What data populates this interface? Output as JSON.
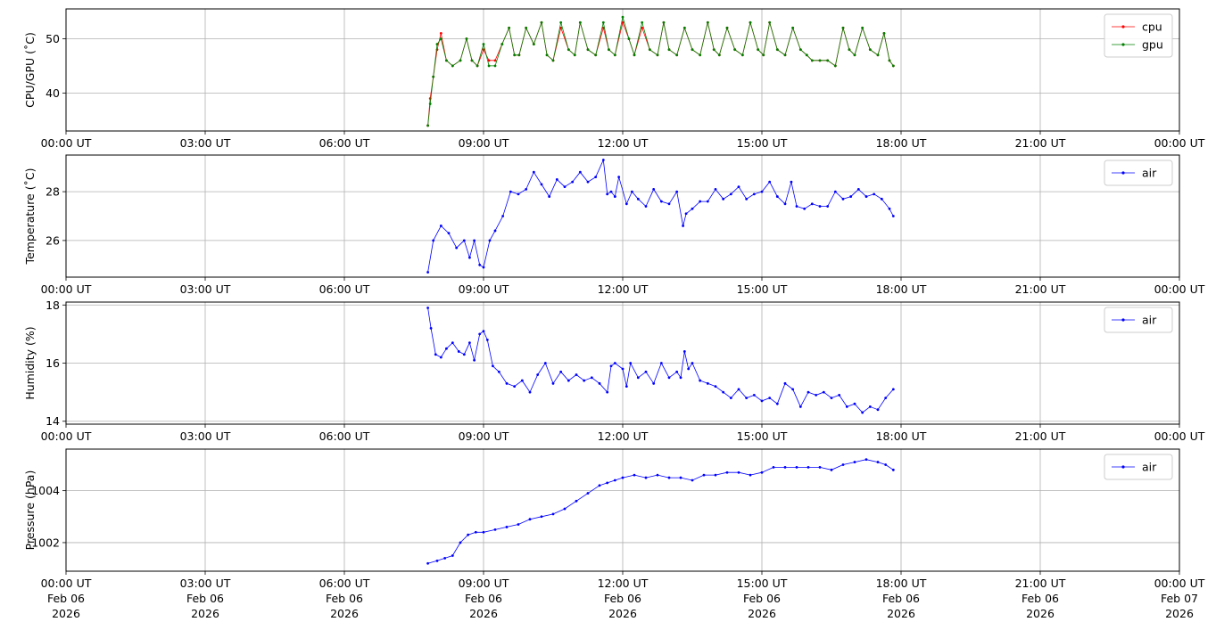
{
  "x_tick_labels": [
    "00:00 UT",
    "03:00 UT",
    "06:00 UT",
    "09:00 UT",
    "12:00 UT",
    "15:00 UT",
    "18:00 UT",
    "21:00 UT",
    "00:00 UT"
  ],
  "x_tick_dates": [
    "Feb 06",
    "Feb 06",
    "Feb 06",
    "Feb 06",
    "Feb 06",
    "Feb 06",
    "Feb 06",
    "Feb 06",
    "Feb 07"
  ],
  "x_tick_years": [
    "2026",
    "2026",
    "2026",
    "2026",
    "2026",
    "2026",
    "2026",
    "2026",
    "2026"
  ],
  "chart_data": [
    {
      "type": "line",
      "ylabel": "CPU/GPU (˚C)",
      "xlim": [
        "2026-02-06 00:00",
        "2026-02-07 00:00"
      ],
      "ylim": [
        33,
        55.5
      ],
      "yticks": [
        40,
        50
      ],
      "grid": true,
      "legend": "top-right",
      "series": [
        {
          "name": "cpu",
          "color": "#ff0000",
          "x": [
            "07:48",
            "07:51",
            "07:55",
            "08:00",
            "08:05",
            "08:12",
            "08:20",
            "08:30",
            "08:38",
            "08:45",
            "08:52",
            "09:00",
            "09:07",
            "09:15",
            "09:24",
            "09:33",
            "09:40",
            "09:46",
            "09:55",
            "10:05",
            "10:15",
            "10:22",
            "10:30",
            "10:40",
            "10:50",
            "10:58",
            "11:05",
            "11:15",
            "11:25",
            "11:35",
            "11:42",
            "11:50",
            "12:00",
            "12:08",
            "12:15",
            "12:25",
            "12:35",
            "12:45",
            "12:53",
            "13:00",
            "13:10",
            "13:20",
            "13:30",
            "13:40",
            "13:50",
            "13:58",
            "14:05",
            "14:15",
            "14:25",
            "14:35",
            "14:45",
            "14:55",
            "15:02",
            "15:10",
            "15:20",
            "15:30",
            "15:40",
            "15:50",
            "15:58",
            "16:05",
            "16:15",
            "16:25",
            "16:35",
            "16:45",
            "16:53",
            "17:00",
            "17:10",
            "17:20",
            "17:30",
            "17:38",
            "17:45",
            "17:50"
          ],
          "y": [
            34,
            39,
            43,
            48,
            51,
            46,
            45,
            46,
            50,
            46,
            45,
            48,
            46,
            46,
            49,
            52,
            47,
            47,
            52,
            49,
            53,
            47,
            46,
            52,
            48,
            47,
            53,
            48,
            47,
            52,
            48,
            47,
            53,
            50,
            47,
            52,
            48,
            47,
            53,
            48,
            47,
            52,
            48,
            47,
            53,
            48,
            47,
            52,
            48,
            47,
            53,
            48,
            47,
            53,
            48,
            47,
            52,
            48,
            47,
            46,
            46,
            46,
            45,
            52,
            48,
            47,
            52,
            48,
            47,
            51,
            46,
            45
          ]
        },
        {
          "name": "gpu",
          "color": "#008000",
          "x": [
            "07:48",
            "07:51",
            "07:55",
            "08:00",
            "08:05",
            "08:12",
            "08:20",
            "08:30",
            "08:38",
            "08:45",
            "08:52",
            "09:00",
            "09:07",
            "09:15",
            "09:24",
            "09:33",
            "09:40",
            "09:46",
            "09:55",
            "10:05",
            "10:15",
            "10:22",
            "10:30",
            "10:40",
            "10:50",
            "10:58",
            "11:05",
            "11:15",
            "11:25",
            "11:35",
            "11:42",
            "11:50",
            "12:00",
            "12:08",
            "12:15",
            "12:25",
            "12:35",
            "12:45",
            "12:53",
            "13:00",
            "13:10",
            "13:20",
            "13:30",
            "13:40",
            "13:50",
            "13:58",
            "14:05",
            "14:15",
            "14:25",
            "14:35",
            "14:45",
            "14:55",
            "15:02",
            "15:10",
            "15:20",
            "15:30",
            "15:40",
            "15:50",
            "15:58",
            "16:05",
            "16:15",
            "16:25",
            "16:35",
            "16:45",
            "16:53",
            "17:00",
            "17:10",
            "17:20",
            "17:30",
            "17:38",
            "17:45",
            "17:50"
          ],
          "y": [
            34,
            38,
            43,
            49,
            50,
            46,
            45,
            46,
            50,
            46,
            45,
            49,
            45,
            45,
            49,
            52,
            47,
            47,
            52,
            49,
            53,
            47,
            46,
            53,
            48,
            47,
            53,
            48,
            47,
            53,
            48,
            47,
            54,
            50,
            47,
            53,
            48,
            47,
            53,
            48,
            47,
            52,
            48,
            47,
            53,
            48,
            47,
            52,
            48,
            47,
            53,
            48,
            47,
            53,
            48,
            47,
            52,
            48,
            47,
            46,
            46,
            46,
            45,
            52,
            48,
            47,
            52,
            48,
            47,
            51,
            46,
            45
          ]
        }
      ]
    },
    {
      "type": "line",
      "ylabel": "Temperature (˚C)",
      "xlim": [
        "2026-02-06 00:00",
        "2026-02-07 00:00"
      ],
      "ylim": [
        24.5,
        29.5
      ],
      "yticks": [
        26,
        28
      ],
      "grid": true,
      "legend": "top-right",
      "series": [
        {
          "name": "air",
          "color": "#0000ff",
          "x": [
            "07:48",
            "07:55",
            "08:05",
            "08:15",
            "08:25",
            "08:35",
            "08:42",
            "08:48",
            "08:55",
            "09:00",
            "09:08",
            "09:15",
            "09:25",
            "09:35",
            "09:45",
            "09:55",
            "10:05",
            "10:15",
            "10:25",
            "10:35",
            "10:45",
            "10:55",
            "11:05",
            "11:15",
            "11:25",
            "11:35",
            "11:40",
            "11:45",
            "11:50",
            "11:55",
            "12:05",
            "12:12",
            "12:20",
            "12:30",
            "12:40",
            "12:50",
            "13:00",
            "13:10",
            "13:18",
            "13:22",
            "13:30",
            "13:40",
            "13:50",
            "14:00",
            "14:10",
            "14:20",
            "14:30",
            "14:40",
            "14:50",
            "15:00",
            "15:10",
            "15:20",
            "15:30",
            "15:38",
            "15:45",
            "15:55",
            "16:05",
            "16:15",
            "16:25",
            "16:35",
            "16:45",
            "16:55",
            "17:05",
            "17:15",
            "17:25",
            "17:35",
            "17:45",
            "17:50"
          ],
          "y": [
            24.7,
            26.0,
            26.6,
            26.3,
            25.7,
            26.0,
            25.3,
            26.0,
            25.0,
            24.9,
            26.0,
            26.4,
            27.0,
            28.0,
            27.9,
            28.1,
            28.8,
            28.3,
            27.8,
            28.5,
            28.2,
            28.4,
            28.8,
            28.4,
            28.6,
            29.3,
            27.9,
            28.0,
            27.8,
            28.6,
            27.5,
            28.0,
            27.7,
            27.4,
            28.1,
            27.6,
            27.5,
            28.0,
            26.6,
            27.1,
            27.3,
            27.6,
            27.6,
            28.1,
            27.7,
            27.9,
            28.2,
            27.7,
            27.9,
            28.0,
            28.4,
            27.8,
            27.5,
            28.4,
            27.4,
            27.3,
            27.5,
            27.4,
            27.4,
            28.0,
            27.7,
            27.8,
            28.1,
            27.8,
            27.9,
            27.7,
            27.3,
            27.0
          ]
        }
      ]
    },
    {
      "type": "line",
      "ylabel": "Humidity (%)",
      "xlim": [
        "2026-02-06 00:00",
        "2026-02-07 00:00"
      ],
      "ylim": [
        13.9,
        18.1
      ],
      "yticks": [
        14,
        16,
        18
      ],
      "grid": true,
      "legend": "top-right",
      "series": [
        {
          "name": "air",
          "color": "#0000ff",
          "x": [
            "07:48",
            "07:52",
            "07:58",
            "08:05",
            "08:12",
            "08:20",
            "08:28",
            "08:35",
            "08:42",
            "08:48",
            "08:55",
            "09:00",
            "09:05",
            "09:12",
            "09:20",
            "09:30",
            "09:40",
            "09:50",
            "10:00",
            "10:10",
            "10:20",
            "10:30",
            "10:40",
            "10:50",
            "11:00",
            "11:10",
            "11:20",
            "11:30",
            "11:40",
            "11:45",
            "11:50",
            "12:00",
            "12:05",
            "12:10",
            "12:20",
            "12:30",
            "12:40",
            "12:50",
            "13:00",
            "13:10",
            "13:15",
            "13:20",
            "13:25",
            "13:30",
            "13:40",
            "13:50",
            "14:00",
            "14:10",
            "14:20",
            "14:30",
            "14:40",
            "14:50",
            "15:00",
            "15:10",
            "15:20",
            "15:30",
            "15:40",
            "15:50",
            "16:00",
            "16:10",
            "16:20",
            "16:30",
            "16:40",
            "16:50",
            "17:00",
            "17:10",
            "17:20",
            "17:30",
            "17:40",
            "17:50"
          ],
          "y": [
            17.9,
            17.2,
            16.3,
            16.2,
            16.5,
            16.7,
            16.4,
            16.3,
            16.7,
            16.1,
            17.0,
            17.1,
            16.8,
            15.9,
            15.7,
            15.3,
            15.2,
            15.4,
            15.0,
            15.6,
            16.0,
            15.3,
            15.7,
            15.4,
            15.6,
            15.4,
            15.5,
            15.3,
            15.0,
            15.9,
            16.0,
            15.8,
            15.2,
            16.0,
            15.5,
            15.7,
            15.3,
            16.0,
            15.5,
            15.7,
            15.5,
            16.4,
            15.8,
            16.0,
            15.4,
            15.3,
            15.2,
            15.0,
            14.8,
            15.1,
            14.8,
            14.9,
            14.7,
            14.8,
            14.6,
            15.3,
            15.1,
            14.5,
            15.0,
            14.9,
            15.0,
            14.8,
            14.9,
            14.5,
            14.6,
            14.3,
            14.5,
            14.4,
            14.8,
            15.1
          ]
        }
      ]
    },
    {
      "type": "line",
      "ylabel": "Pressure (hPa)",
      "xlim": [
        "2026-02-06 00:00",
        "2026-02-07 00:00"
      ],
      "ylim": [
        1000.9,
        1005.6
      ],
      "yticks": [
        1002,
        1004
      ],
      "grid": true,
      "legend": "top-right",
      "series": [
        {
          "name": "air",
          "color": "#0000ff",
          "x": [
            "07:48",
            "08:00",
            "08:10",
            "08:20",
            "08:30",
            "08:40",
            "08:50",
            "09:00",
            "09:15",
            "09:30",
            "09:45",
            "10:00",
            "10:15",
            "10:30",
            "10:45",
            "11:00",
            "11:15",
            "11:30",
            "11:40",
            "11:50",
            "12:00",
            "12:15",
            "12:30",
            "12:45",
            "13:00",
            "13:15",
            "13:30",
            "13:45",
            "14:00",
            "14:15",
            "14:30",
            "14:45",
            "15:00",
            "15:15",
            "15:30",
            "15:45",
            "16:00",
            "16:15",
            "16:30",
            "16:45",
            "17:00",
            "17:15",
            "17:30",
            "17:40",
            "17:50"
          ],
          "y": [
            1001.2,
            1001.3,
            1001.4,
            1001.5,
            1002.0,
            1002.3,
            1002.4,
            1002.4,
            1002.5,
            1002.6,
            1002.7,
            1002.9,
            1003.0,
            1003.1,
            1003.3,
            1003.6,
            1003.9,
            1004.2,
            1004.3,
            1004.4,
            1004.5,
            1004.6,
            1004.5,
            1004.6,
            1004.5,
            1004.5,
            1004.4,
            1004.6,
            1004.6,
            1004.7,
            1004.7,
            1004.6,
            1004.7,
            1004.9,
            1004.9,
            1004.9,
            1004.9,
            1004.9,
            1004.8,
            1005.0,
            1005.1,
            1005.2,
            1005.1,
            1005.0,
            1004.8
          ]
        }
      ]
    }
  ]
}
